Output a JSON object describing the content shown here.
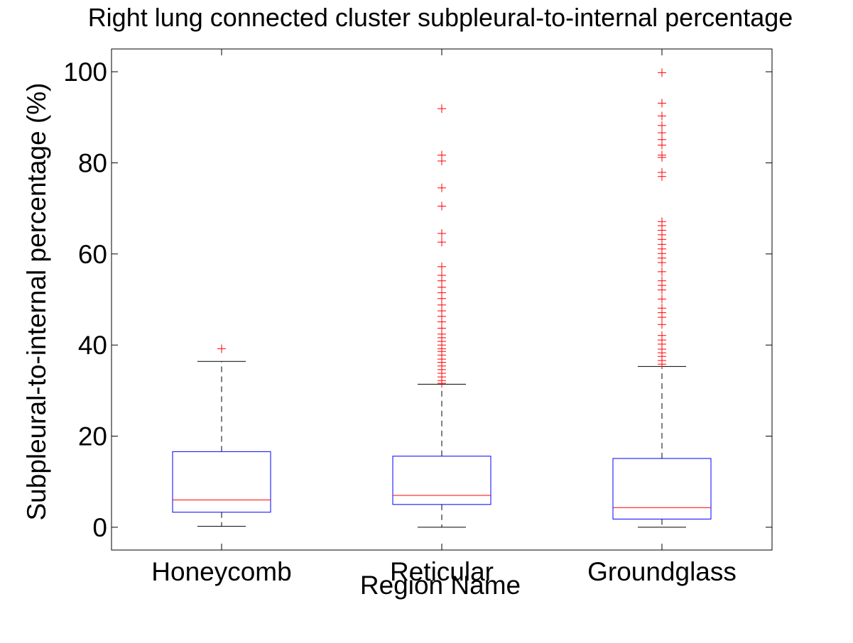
{
  "chart_data": {
    "type": "box",
    "title": "Right lung connected cluster subpleural-to-internal percentage",
    "xlabel": "Region Name",
    "ylabel": "Subpleural-to-internal percentage (%)",
    "ylim": [
      -5,
      105
    ],
    "yticks": [
      0,
      20,
      40,
      60,
      80,
      100
    ],
    "grid": false,
    "colors": {
      "box": "#0000ff",
      "median": "#ff0000",
      "whisker": "#000000",
      "outlier": "#ff0000"
    },
    "categories": [
      "Honeycomb",
      "Reticular",
      "Groundglass"
    ],
    "boxes": [
      {
        "category": "Honeycomb",
        "whisker_low": 0.2,
        "q1": 3.3,
        "median": 6.0,
        "q3": 16.6,
        "whisker_high": 36.4,
        "outliers": [
          39.2
        ]
      },
      {
        "category": "Reticular",
        "whisker_low": 0.0,
        "q1": 5.0,
        "median": 7.0,
        "q3": 15.6,
        "whisker_high": 31.4,
        "outliers": [
          91.9,
          81.7,
          80.4,
          74.5,
          70.5,
          64.5,
          62.6,
          57.2,
          55.3,
          54.1,
          52.7,
          51.5,
          50.2,
          48.8,
          47.5,
          46.3,
          45.1,
          43.7,
          42.4,
          41.6,
          40.8,
          40.0,
          39.2,
          38.6,
          37.8,
          36.9,
          36.2,
          35.4,
          34.6,
          33.8,
          33.0,
          32.2,
          31.6
        ]
      },
      {
        "category": "Groundglass",
        "whisker_low": 0.0,
        "q1": 1.8,
        "median": 4.3,
        "q3": 15.1,
        "whisker_high": 35.3,
        "outliers": [
          99.8,
          93.1,
          90.3,
          88.2,
          86.6,
          85.1,
          83.9,
          81.7,
          81.2,
          77.9,
          77.0,
          67.1,
          66.2,
          65.2,
          64.2,
          63.2,
          62.1,
          61.1,
          60.1,
          59.1,
          58.1,
          56.1,
          54.1,
          53.1,
          52.1,
          50.1,
          48.1,
          47.1,
          46.1,
          44.5,
          42.1,
          41.1,
          40.2,
          39.1,
          38.3,
          37.5,
          36.6,
          35.8
        ]
      }
    ]
  }
}
